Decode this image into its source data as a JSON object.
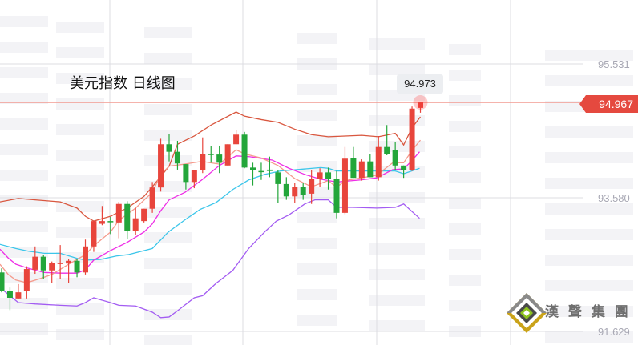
{
  "chart_data": {
    "type": "candlestick",
    "title": "美元指数 日线图",
    "y_ticks": [
      "95.531",
      "93.580",
      "91.629"
    ],
    "ylim": [
      91.629,
      95.531
    ],
    "current_price": "94.967",
    "tooltip_value": "94.973",
    "up_color": "#e8453c",
    "down_color": "#23a63a",
    "candles": [
      [
        92.49,
        92.55,
        92.2,
        92.22
      ],
      [
        92.22,
        92.27,
        91.94,
        92.12
      ],
      [
        92.11,
        92.32,
        92.11,
        92.2
      ],
      [
        92.22,
        92.58,
        92.11,
        92.54
      ],
      [
        92.53,
        92.87,
        92.47,
        92.72
      ],
      [
        92.72,
        92.75,
        92.39,
        92.52
      ],
      [
        92.52,
        92.65,
        92.34,
        92.63
      ],
      [
        92.62,
        92.89,
        92.4,
        92.63
      ],
      [
        92.62,
        92.69,
        92.34,
        92.66
      ],
      [
        92.66,
        92.69,
        92.42,
        92.49
      ],
      [
        92.49,
        92.97,
        92.46,
        92.87
      ],
      [
        92.87,
        93.25,
        92.79,
        93.24
      ],
      [
        93.2,
        93.46,
        93.18,
        93.24
      ],
      [
        93.24,
        93.3,
        93.05,
        93.23
      ],
      [
        93.22,
        93.52,
        92.99,
        93.49
      ],
      [
        93.49,
        93.53,
        92.98,
        93.1
      ],
      [
        93.1,
        93.43,
        93.04,
        93.28
      ],
      [
        93.24,
        93.42,
        93.22,
        93.42
      ],
      [
        93.42,
        93.81,
        93.36,
        93.73
      ],
      [
        93.73,
        94.44,
        93.67,
        94.36
      ],
      [
        94.36,
        94.51,
        94.11,
        94.25
      ],
      [
        94.25,
        94.41,
        93.99,
        94.08
      ],
      [
        94.07,
        94.07,
        93.7,
        93.81
      ],
      [
        93.81,
        93.98,
        93.72,
        93.98
      ],
      [
        93.98,
        94.46,
        93.94,
        94.22
      ],
      [
        94.22,
        94.33,
        94.09,
        94.21
      ],
      [
        94.21,
        94.34,
        93.94,
        94.09
      ],
      [
        94.05,
        94.36,
        94.05,
        94.36
      ],
      [
        94.36,
        94.57,
        94.36,
        94.5
      ],
      [
        94.5,
        94.54,
        94.01,
        94.02
      ],
      [
        94.02,
        94.09,
        93.76,
        93.98
      ],
      [
        93.97,
        94.09,
        93.84,
        93.96
      ],
      [
        93.99,
        94.18,
        93.88,
        93.97
      ],
      [
        93.95,
        93.98,
        93.51,
        93.78
      ],
      [
        93.78,
        93.88,
        93.55,
        93.6
      ],
      [
        93.6,
        93.8,
        93.51,
        93.74
      ],
      [
        93.74,
        93.8,
        93.55,
        93.62
      ],
      [
        93.64,
        93.98,
        93.49,
        93.85
      ],
      [
        93.85,
        94.01,
        93.74,
        93.95
      ],
      [
        93.95,
        94.02,
        93.7,
        93.86
      ],
      [
        93.86,
        93.97,
        93.28,
        93.36
      ],
      [
        93.36,
        94.32,
        93.34,
        94.15
      ],
      [
        94.16,
        94.32,
        93.87,
        93.87
      ],
      [
        93.87,
        94.14,
        93.83,
        94.11
      ],
      [
        94.11,
        94.22,
        93.88,
        93.88
      ],
      [
        93.88,
        94.48,
        93.83,
        94.32
      ],
      [
        94.32,
        94.64,
        94.2,
        94.22
      ],
      [
        94.28,
        94.39,
        93.99,
        94.05
      ],
      [
        94.05,
        94.05,
        93.87,
        93.98
      ],
      [
        93.98,
        94.91,
        93.97,
        94.88
      ],
      [
        94.89,
        94.98,
        94.82,
        94.97
      ]
    ],
    "series": [
      {
        "name": "boll-upper",
        "color": "#d9573f",
        "points": [
          [
            -0.2,
            93.52
          ],
          [
            2,
            93.57
          ],
          [
            4,
            93.55
          ],
          [
            7,
            93.52
          ],
          [
            9,
            93.43
          ],
          [
            10,
            93.31
          ],
          [
            11,
            93.24
          ],
          [
            13,
            93.31
          ],
          [
            15,
            93.43
          ],
          [
            17,
            93.6
          ],
          [
            18,
            93.74
          ],
          [
            20,
            94.04
          ],
          [
            21,
            94.36
          ],
          [
            23,
            94.48
          ],
          [
            25,
            94.64
          ],
          [
            28,
            94.83
          ],
          [
            29,
            94.77
          ],
          [
            31,
            94.72
          ],
          [
            33,
            94.68
          ],
          [
            35,
            94.58
          ],
          [
            37,
            94.5
          ],
          [
            39,
            94.47
          ],
          [
            41,
            94.48
          ],
          [
            43,
            94.49
          ],
          [
            45,
            94.47
          ],
          [
            47,
            94.52
          ],
          [
            48,
            94.35
          ],
          [
            49,
            94.6
          ],
          [
            50,
            94.76
          ]
        ]
      },
      {
        "name": "boll-lower",
        "color": "#a35cf2",
        "points": [
          [
            -0.2,
            92.27
          ],
          [
            2,
            92.05
          ],
          [
            4,
            92.03
          ],
          [
            7,
            92.01
          ],
          [
            9,
            92.0
          ],
          [
            10,
            92.05
          ],
          [
            11,
            92.12
          ],
          [
            13,
            92.05
          ],
          [
            14,
            92.01
          ],
          [
            16,
            92.0
          ],
          [
            18,
            91.91
          ],
          [
            19,
            91.83
          ],
          [
            20,
            91.84
          ],
          [
            21,
            91.93
          ],
          [
            23,
            92.12
          ],
          [
            24,
            92.15
          ],
          [
            25.6,
            92.33
          ],
          [
            27.6,
            92.52
          ],
          [
            29.5,
            92.84
          ],
          [
            31.4,
            93.08
          ],
          [
            32.8,
            93.24
          ],
          [
            34.3,
            93.33
          ],
          [
            36.2,
            93.49
          ],
          [
            37.4,
            93.55
          ],
          [
            39,
            93.55
          ],
          [
            40,
            93.44
          ],
          [
            41.9,
            93.44
          ],
          [
            44.8,
            93.43
          ],
          [
            47,
            93.44
          ],
          [
            48,
            93.49
          ],
          [
            49.9,
            93.28
          ]
        ]
      },
      {
        "name": "ma-cyan",
        "color": "#3cc6ea",
        "points": [
          [
            -0.2,
            92.9
          ],
          [
            1.7,
            92.84
          ],
          [
            3.2,
            92.8
          ],
          [
            5.1,
            92.77
          ],
          [
            7,
            92.77
          ],
          [
            8.9,
            92.7
          ],
          [
            10,
            92.67
          ],
          [
            11.8,
            92.68
          ],
          [
            13.7,
            92.73
          ],
          [
            15.1,
            92.75
          ],
          [
            18,
            92.84
          ],
          [
            19.9,
            93.08
          ],
          [
            21.8,
            93.25
          ],
          [
            23.7,
            93.41
          ],
          [
            25.6,
            93.51
          ],
          [
            27.6,
            93.7
          ],
          [
            29.5,
            93.84
          ],
          [
            31.4,
            93.92
          ],
          [
            33.3,
            93.97
          ],
          [
            36.2,
            94.0
          ],
          [
            38.1,
            94.02
          ],
          [
            39,
            94.01
          ],
          [
            40,
            93.97
          ],
          [
            47,
            93.97
          ],
          [
            48,
            93.93
          ],
          [
            49.9,
            94.01
          ]
        ]
      },
      {
        "name": "ma-magenta",
        "color": "#ee2ee6",
        "points": [
          [
            -0.2,
            92.83
          ],
          [
            0.8,
            92.7
          ],
          [
            1.7,
            92.61
          ],
          [
            3.2,
            92.55
          ],
          [
            5.1,
            92.49
          ],
          [
            7,
            92.48
          ],
          [
            9,
            92.48
          ],
          [
            10,
            92.53
          ],
          [
            11,
            92.67
          ],
          [
            13,
            92.81
          ],
          [
            15,
            92.93
          ],
          [
            17,
            93.08
          ],
          [
            18,
            93.2
          ],
          [
            19,
            93.39
          ],
          [
            20,
            93.55
          ],
          [
            21.9,
            93.66
          ],
          [
            23.9,
            93.84
          ],
          [
            26,
            94.05
          ],
          [
            28,
            94.19
          ],
          [
            29.5,
            94.18
          ],
          [
            32.3,
            94.13
          ],
          [
            34.3,
            94.01
          ],
          [
            36.2,
            93.92
          ],
          [
            38.1,
            93.85
          ],
          [
            40,
            93.81
          ],
          [
            42.9,
            93.84
          ],
          [
            44.8,
            93.87
          ],
          [
            46.7,
            93.99
          ],
          [
            48,
            94.0
          ],
          [
            48.9,
            94.11
          ],
          [
            49.9,
            94.25
          ]
        ]
      },
      {
        "name": "ma-salmon",
        "color": "#f59a8c",
        "points": [
          [
            -0.2,
            92.61
          ],
          [
            0.8,
            92.46
          ],
          [
            1.7,
            92.38
          ],
          [
            3,
            92.34
          ],
          [
            4.6,
            92.4
          ],
          [
            6,
            92.46
          ],
          [
            8,
            92.61
          ],
          [
            10,
            92.75
          ],
          [
            11,
            92.88
          ],
          [
            13,
            93.08
          ],
          [
            14,
            93.25
          ],
          [
            16,
            93.43
          ],
          [
            18,
            93.66
          ],
          [
            19,
            93.92
          ],
          [
            20,
            94.04
          ],
          [
            21.8,
            94.07
          ],
          [
            23.9,
            94.11
          ],
          [
            26,
            94.07
          ],
          [
            28,
            94.28
          ],
          [
            29,
            94.22
          ],
          [
            31,
            94.16
          ],
          [
            33,
            94.05
          ],
          [
            35,
            93.86
          ],
          [
            37,
            93.74
          ],
          [
            39,
            93.83
          ],
          [
            40,
            93.73
          ],
          [
            41,
            93.83
          ],
          [
            43,
            93.87
          ],
          [
            44.8,
            93.91
          ],
          [
            46.7,
            94.09
          ],
          [
            48,
            94.09
          ],
          [
            49,
            94.27
          ],
          [
            50,
            94.42
          ]
        ]
      }
    ]
  },
  "watermark": {
    "logo_text": "漢 聲 集 團"
  }
}
